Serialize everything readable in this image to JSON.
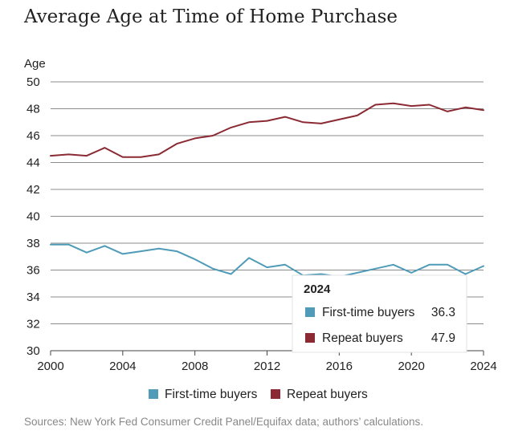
{
  "colors": {
    "first_time": "#4f9bb8",
    "repeat": "#8b2a33",
    "grid": "#8c8c8c",
    "title": "#222222",
    "source": "#888888"
  },
  "chart_data": {
    "type": "line",
    "title": "Average Age at Time of Home Purchase",
    "ylabel": "Age",
    "xlabel": "",
    "xlim": [
      2000,
      2024
    ],
    "ylim": [
      30,
      50
    ],
    "xticks": [
      2000,
      2004,
      2008,
      2012,
      2016,
      2020,
      2024
    ],
    "yticks": [
      30,
      32,
      34,
      36,
      38,
      40,
      42,
      44,
      46,
      48,
      50
    ],
    "grid": true,
    "legend_position": "bottom",
    "x": [
      2000,
      2001,
      2002,
      2003,
      2004,
      2005,
      2006,
      2007,
      2008,
      2009,
      2010,
      2011,
      2012,
      2013,
      2014,
      2015,
      2016,
      2017,
      2018,
      2019,
      2020,
      2021,
      2022,
      2023,
      2024
    ],
    "series": [
      {
        "name": "First-time buyers",
        "color_key": "first_time",
        "values": [
          37.9,
          37.9,
          37.3,
          37.8,
          37.2,
          37.4,
          37.6,
          37.4,
          36.8,
          36.1,
          35.7,
          36.9,
          36.2,
          36.4,
          35.6,
          35.7,
          35.5,
          35.8,
          36.1,
          36.4,
          35.8,
          36.4,
          36.4,
          35.7,
          36.3
        ]
      },
      {
        "name": "Repeat buyers",
        "color_key": "repeat",
        "values": [
          44.5,
          44.6,
          44.5,
          45.1,
          44.4,
          44.4,
          44.6,
          45.4,
          45.8,
          46.0,
          46.6,
          47.0,
          47.1,
          47.4,
          47.0,
          46.9,
          47.2,
          47.5,
          48.3,
          48.4,
          48.2,
          48.3,
          47.8,
          48.1,
          47.9
        ]
      }
    ],
    "tooltip": {
      "title": "2024",
      "items": [
        {
          "label": "First-time buyers",
          "value": "36.3",
          "color_key": "first_time"
        },
        {
          "label": "Repeat buyers",
          "value": "47.9",
          "color_key": "repeat"
        }
      ]
    },
    "source": "Sources: New York Fed Consumer Credit Panel/Equifax data; authors’ calculations."
  }
}
